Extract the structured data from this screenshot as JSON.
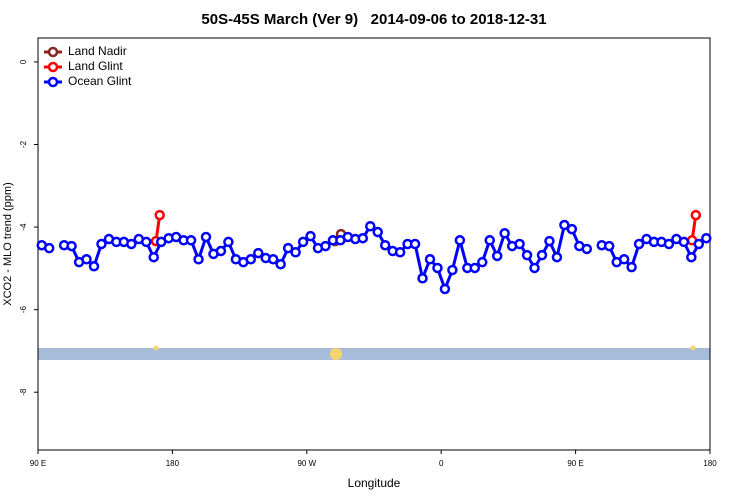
{
  "chart_data": {
    "type": "line",
    "title": "50S-45S March (Ver 9)   2014-09-06 to 2018-12-31",
    "xlabel": "Longitude",
    "ylabel": "XCO2 - MLO trend (ppm)",
    "xlim": [
      90,
      540
    ],
    "ylim": [
      -9.4,
      0.58
    ],
    "xticks": [
      {
        "value": 90,
        "label": "90 E"
      },
      180,
      {
        "value": 270,
        "label": "90 W"
      },
      {
        "value": 360,
        "label": "0"
      },
      {
        "value": 450,
        "label": "90 E"
      },
      {
        "value": 540,
        "label": "180"
      }
    ],
    "yticks": [
      0,
      -2,
      -4,
      -6,
      -8
    ],
    "legend": "top-left",
    "series": [
      {
        "name": "Land Nadir",
        "color": "#8b2323",
        "x": [
          288.9,
          292.9
        ],
        "values": [
          -4.34,
          -4.17
        ]
      },
      {
        "name": "Land Glint",
        "color": "#ff0000",
        "x": [
          169,
          171.5,
          350,
          528,
          530.5
        ],
        "values": [
          -4.34,
          -3.71,
          null,
          -4.32,
          -3.71
        ]
      },
      {
        "name": "Ocean Glint",
        "color": "#0000ff",
        "x": [
          92.5,
          97.5,
          102.5,
          107.5,
          112.5,
          117.5,
          122.5,
          127.5,
          132.5,
          137.5,
          142.5,
          147.5,
          152.5,
          157.5,
          162.5,
          167.5,
          172.5,
          177.5,
          182.5,
          187.5,
          192.5,
          197.5,
          202.5,
          207.5,
          212.5,
          217.5,
          222.5,
          227.5,
          232.5,
          237.5,
          242.5,
          247.5,
          252.5,
          257.5,
          262.5,
          267.5,
          272.5,
          277.5,
          282.5,
          287.5,
          292.5,
          297.5,
          302.5,
          307.5,
          312.5,
          317.5,
          322.5,
          327.5,
          332.5,
          337.5,
          342.5,
          347.5,
          352.5,
          357.5,
          362.5,
          367.5,
          372.5,
          377.5,
          382.5,
          387.5,
          392.5,
          397.5,
          402.5,
          407.5,
          412.5,
          417.5,
          422.5,
          427.5,
          432.5,
          437.5,
          442.5,
          447.5,
          452.5,
          457.5,
          462.5,
          467.5,
          472.5,
          477.5,
          482.5,
          487.5,
          492.5,
          497.5,
          502.5,
          507.5,
          512.5,
          517.5,
          522.5,
          527.5,
          532.5,
          537.5
        ],
        "values": [
          -4.44,
          -4.51,
          null,
          -4.44,
          -4.46,
          -4.85,
          -4.78,
          -4.95,
          -4.41,
          -4.29,
          -4.36,
          -4.36,
          -4.41,
          -4.29,
          -4.36,
          -4.73,
          -4.36,
          -4.27,
          -4.24,
          -4.32,
          -4.32,
          -4.78,
          -4.24,
          -4.65,
          -4.58,
          -4.36,
          -4.78,
          -4.85,
          -4.78,
          -4.63,
          -4.75,
          -4.78,
          -4.9,
          -4.51,
          -4.61,
          -4.36,
          -4.22,
          -4.51,
          -4.46,
          -4.32,
          -4.32,
          -4.24,
          -4.29,
          -4.27,
          -3.98,
          -4.12,
          -4.44,
          -4.58,
          -4.61,
          -4.41,
          -4.41,
          -5.24,
          -4.78,
          -4.99,
          -5.5,
          -5.04,
          -4.32,
          -4.99,
          -4.99,
          -4.85,
          -4.32,
          -4.7,
          -4.15,
          -4.46,
          -4.41,
          -4.68,
          -4.99,
          -4.68,
          -4.34,
          -4.73,
          -3.95,
          -4.05,
          -4.46,
          -4.53,
          null,
          -4.44,
          -4.46,
          -4.85,
          -4.78,
          -4.97,
          -4.41,
          -4.29,
          -4.36,
          -4.36,
          -4.41,
          -4.29,
          -4.36,
          -4.73,
          -4.41,
          -4.27
        ]
      }
    ]
  }
}
